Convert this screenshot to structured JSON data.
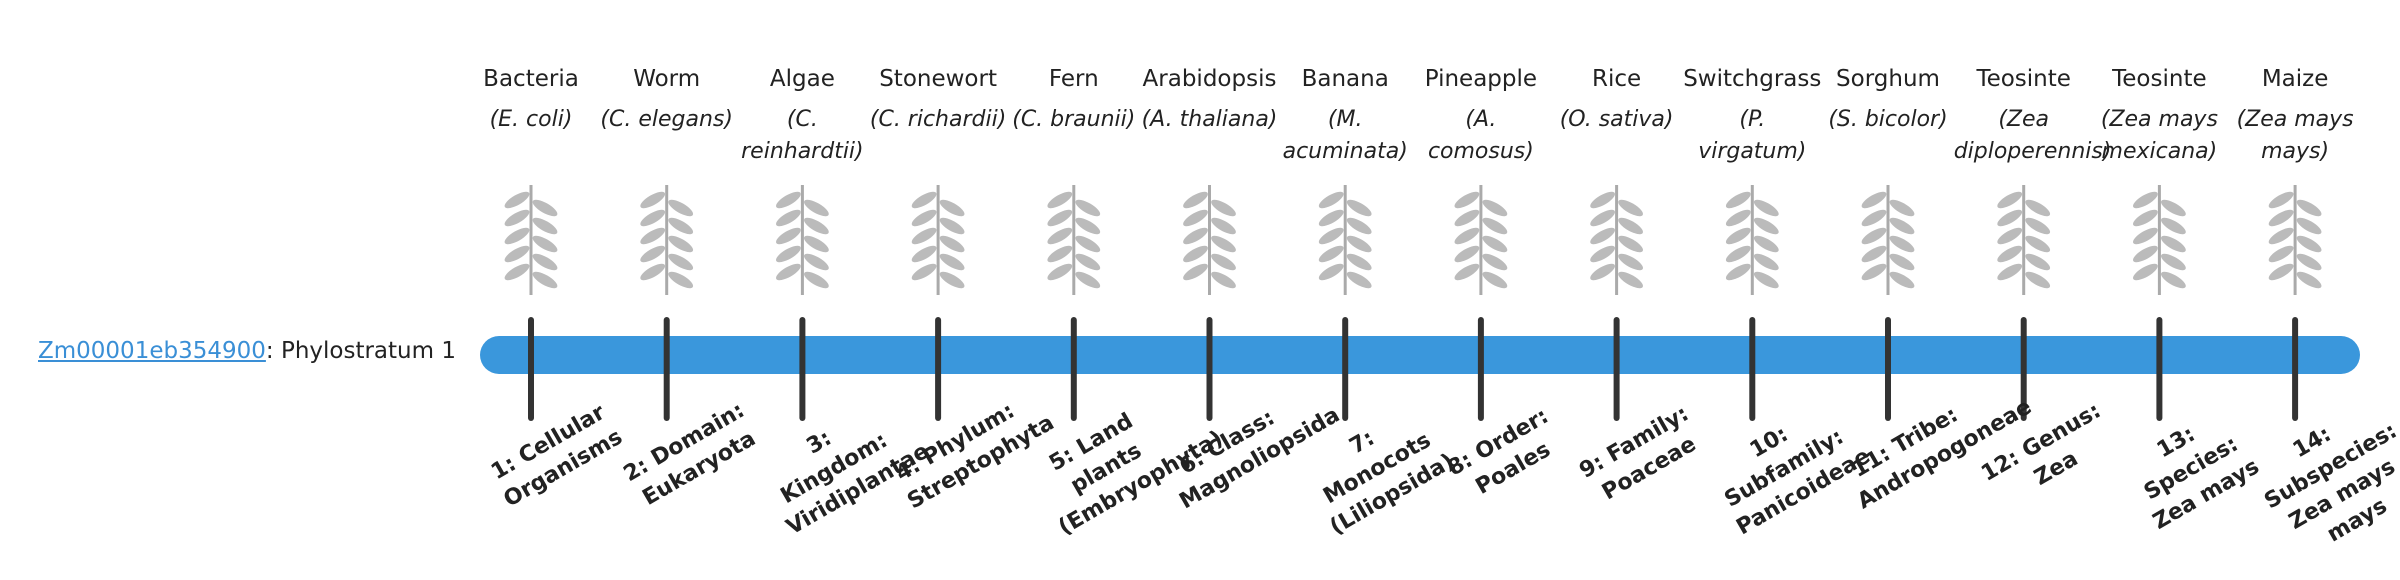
{
  "gene": {
    "id": "Zm00001eb354900",
    "label": ": Phylostratum 1"
  },
  "organisms": [
    {
      "name": "Bacteria",
      "species": "(E. coli)"
    },
    {
      "name": "Worm",
      "species": "(C. elegans)"
    },
    {
      "name": "Algae",
      "species": "(C. reinhardtii)"
    },
    {
      "name": "Stonewort",
      "species": "(C. richardii)"
    },
    {
      "name": "Fern",
      "species": "(C. braunii)"
    },
    {
      "name": "Arabidopsis",
      "species": "(A. thaliana)"
    },
    {
      "name": "Banana",
      "species": "(M. acuminata)"
    },
    {
      "name": "Pineapple",
      "species": "(A. comosus)"
    },
    {
      "name": "Rice",
      "species": "(O. sativa)"
    },
    {
      "name": "Switchgrass",
      "species": "(P. virgatum)"
    },
    {
      "name": "Sorghum",
      "species": "(S. bicolor)"
    },
    {
      "name": "Teosinte",
      "species": "(Zea diploperennis)"
    },
    {
      "name": "Teosinte",
      "species": "(Zea mays mexicana)"
    },
    {
      "name": "Maize",
      "species": "(Zea mays mays)"
    }
  ],
  "strata": [
    "1: Cellular Organisms",
    "2: Domain: Eukaryota",
    "3: Kingdom: Viridiplantae",
    "4: Phylum: Streptophyta",
    "5: Land plants (Embryophyta)",
    "6: Class: Magnoliopsida",
    "7: Monocots (Liliopsida)",
    "8: Order: Poales",
    "9: Family: Poaceae",
    "10: Subfamily: Panicoideae",
    "11: Tribe: Andropogoneae",
    "12: Genus: Zea",
    "13: Species: Zea mays",
    "14: Subspecies: Zea mays mays"
  ]
}
